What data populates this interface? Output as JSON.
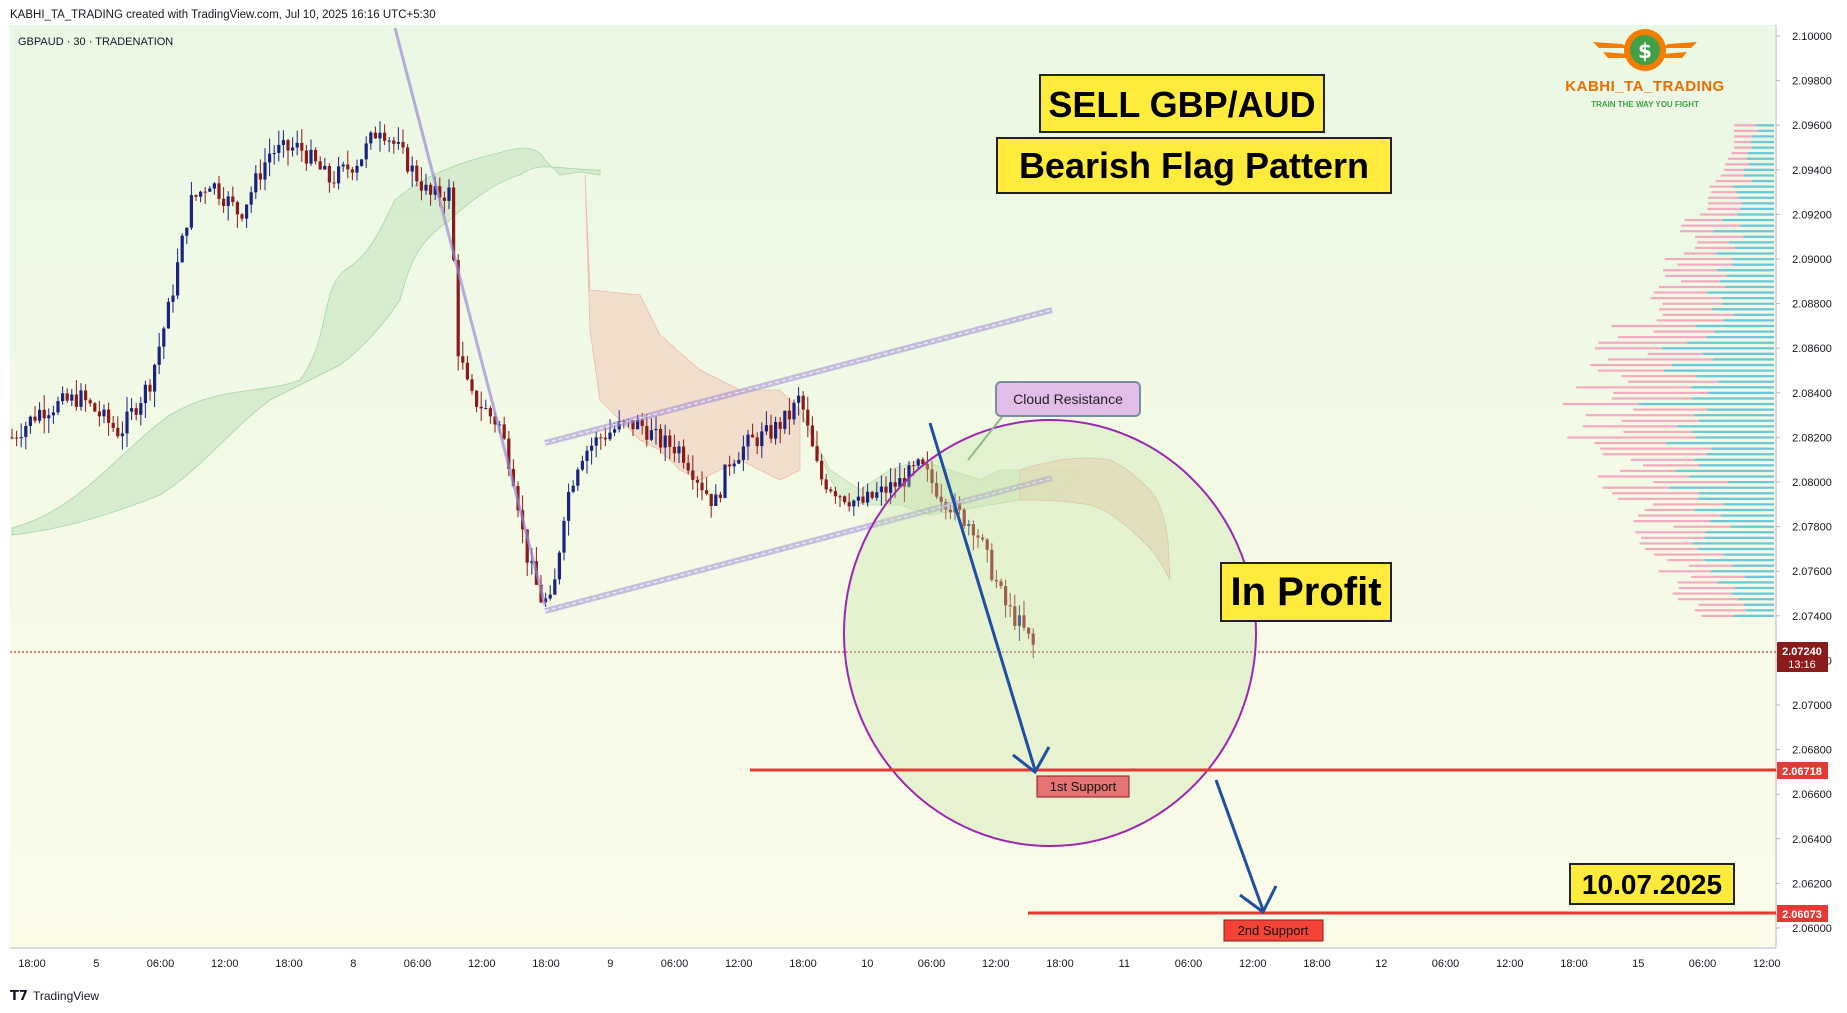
{
  "header": {
    "credit": "KABHI_TA_TRADING created with TradingView.com, Jul 10, 2025 16:16 UTC+5:30",
    "symbol": "GBPAUD · 30 · TRADENATION"
  },
  "footer": {
    "brand": "TradingView"
  },
  "logo": {
    "name": "KABHI_TA_TRADING",
    "tagline": "TRAIN THE WAY YOU FIGHT",
    "symbol": "$"
  },
  "annotations": {
    "title_1": "SELL GBP/AUD",
    "title_2": "Bearish Flag Pattern",
    "in_profit": "In Profit",
    "date_label": "10.07.2025",
    "cloud_resistance": "Cloud Resistance",
    "support_1": "1st Support",
    "support_2": "2nd Support"
  },
  "price_tags": {
    "current_price": "2.07240",
    "countdown": "13:16",
    "support_1_price": "2.06718",
    "support_2_price": "2.06073"
  },
  "colors": {
    "cloud_bull": "#c8e6c9",
    "cloud_bear": "#f5d5c8",
    "candle_up": "#1a237e",
    "candle_down": "#8b1a1a",
    "support_line": "#e53935",
    "channel": "#9c8ad6",
    "circle": "#9c27b0",
    "arrow": "#1f4fa0",
    "label_yellow": "#ffeb3b",
    "volume_profile_blue": "#4dd0e1",
    "volume_profile_pink": "#f48fb1"
  },
  "chart_data": {
    "type": "candlestick",
    "ylim": [
      2.059,
      2.1003
    ],
    "y_ticks": [
      "2.10000",
      "2.09800",
      "2.09600",
      "2.09400",
      "2.09200",
      "2.09000",
      "2.08800",
      "2.08600",
      "2.08400",
      "2.08200",
      "2.08000",
      "2.07800",
      "2.07600",
      "2.07400",
      "2.07200",
      "2.07000",
      "2.06800",
      "2.06600",
      "2.06400",
      "2.06200",
      "2.06000"
    ],
    "x_ticks": [
      "18:00",
      "5",
      "06:00",
      "12:00",
      "18:00",
      "8",
      "06:00",
      "12:00",
      "18:00",
      "9",
      "06:00",
      "12:00",
      "18:00",
      "10",
      "06:00",
      "12:00",
      "18:00",
      "11",
      "06:00",
      "12:00",
      "18:00",
      "12",
      "06:00",
      "12:00",
      "18:00",
      "15",
      "06:00",
      "12:00"
    ],
    "support_levels": [
      2.06718,
      2.06073
    ],
    "last_price": 2.0724
  }
}
